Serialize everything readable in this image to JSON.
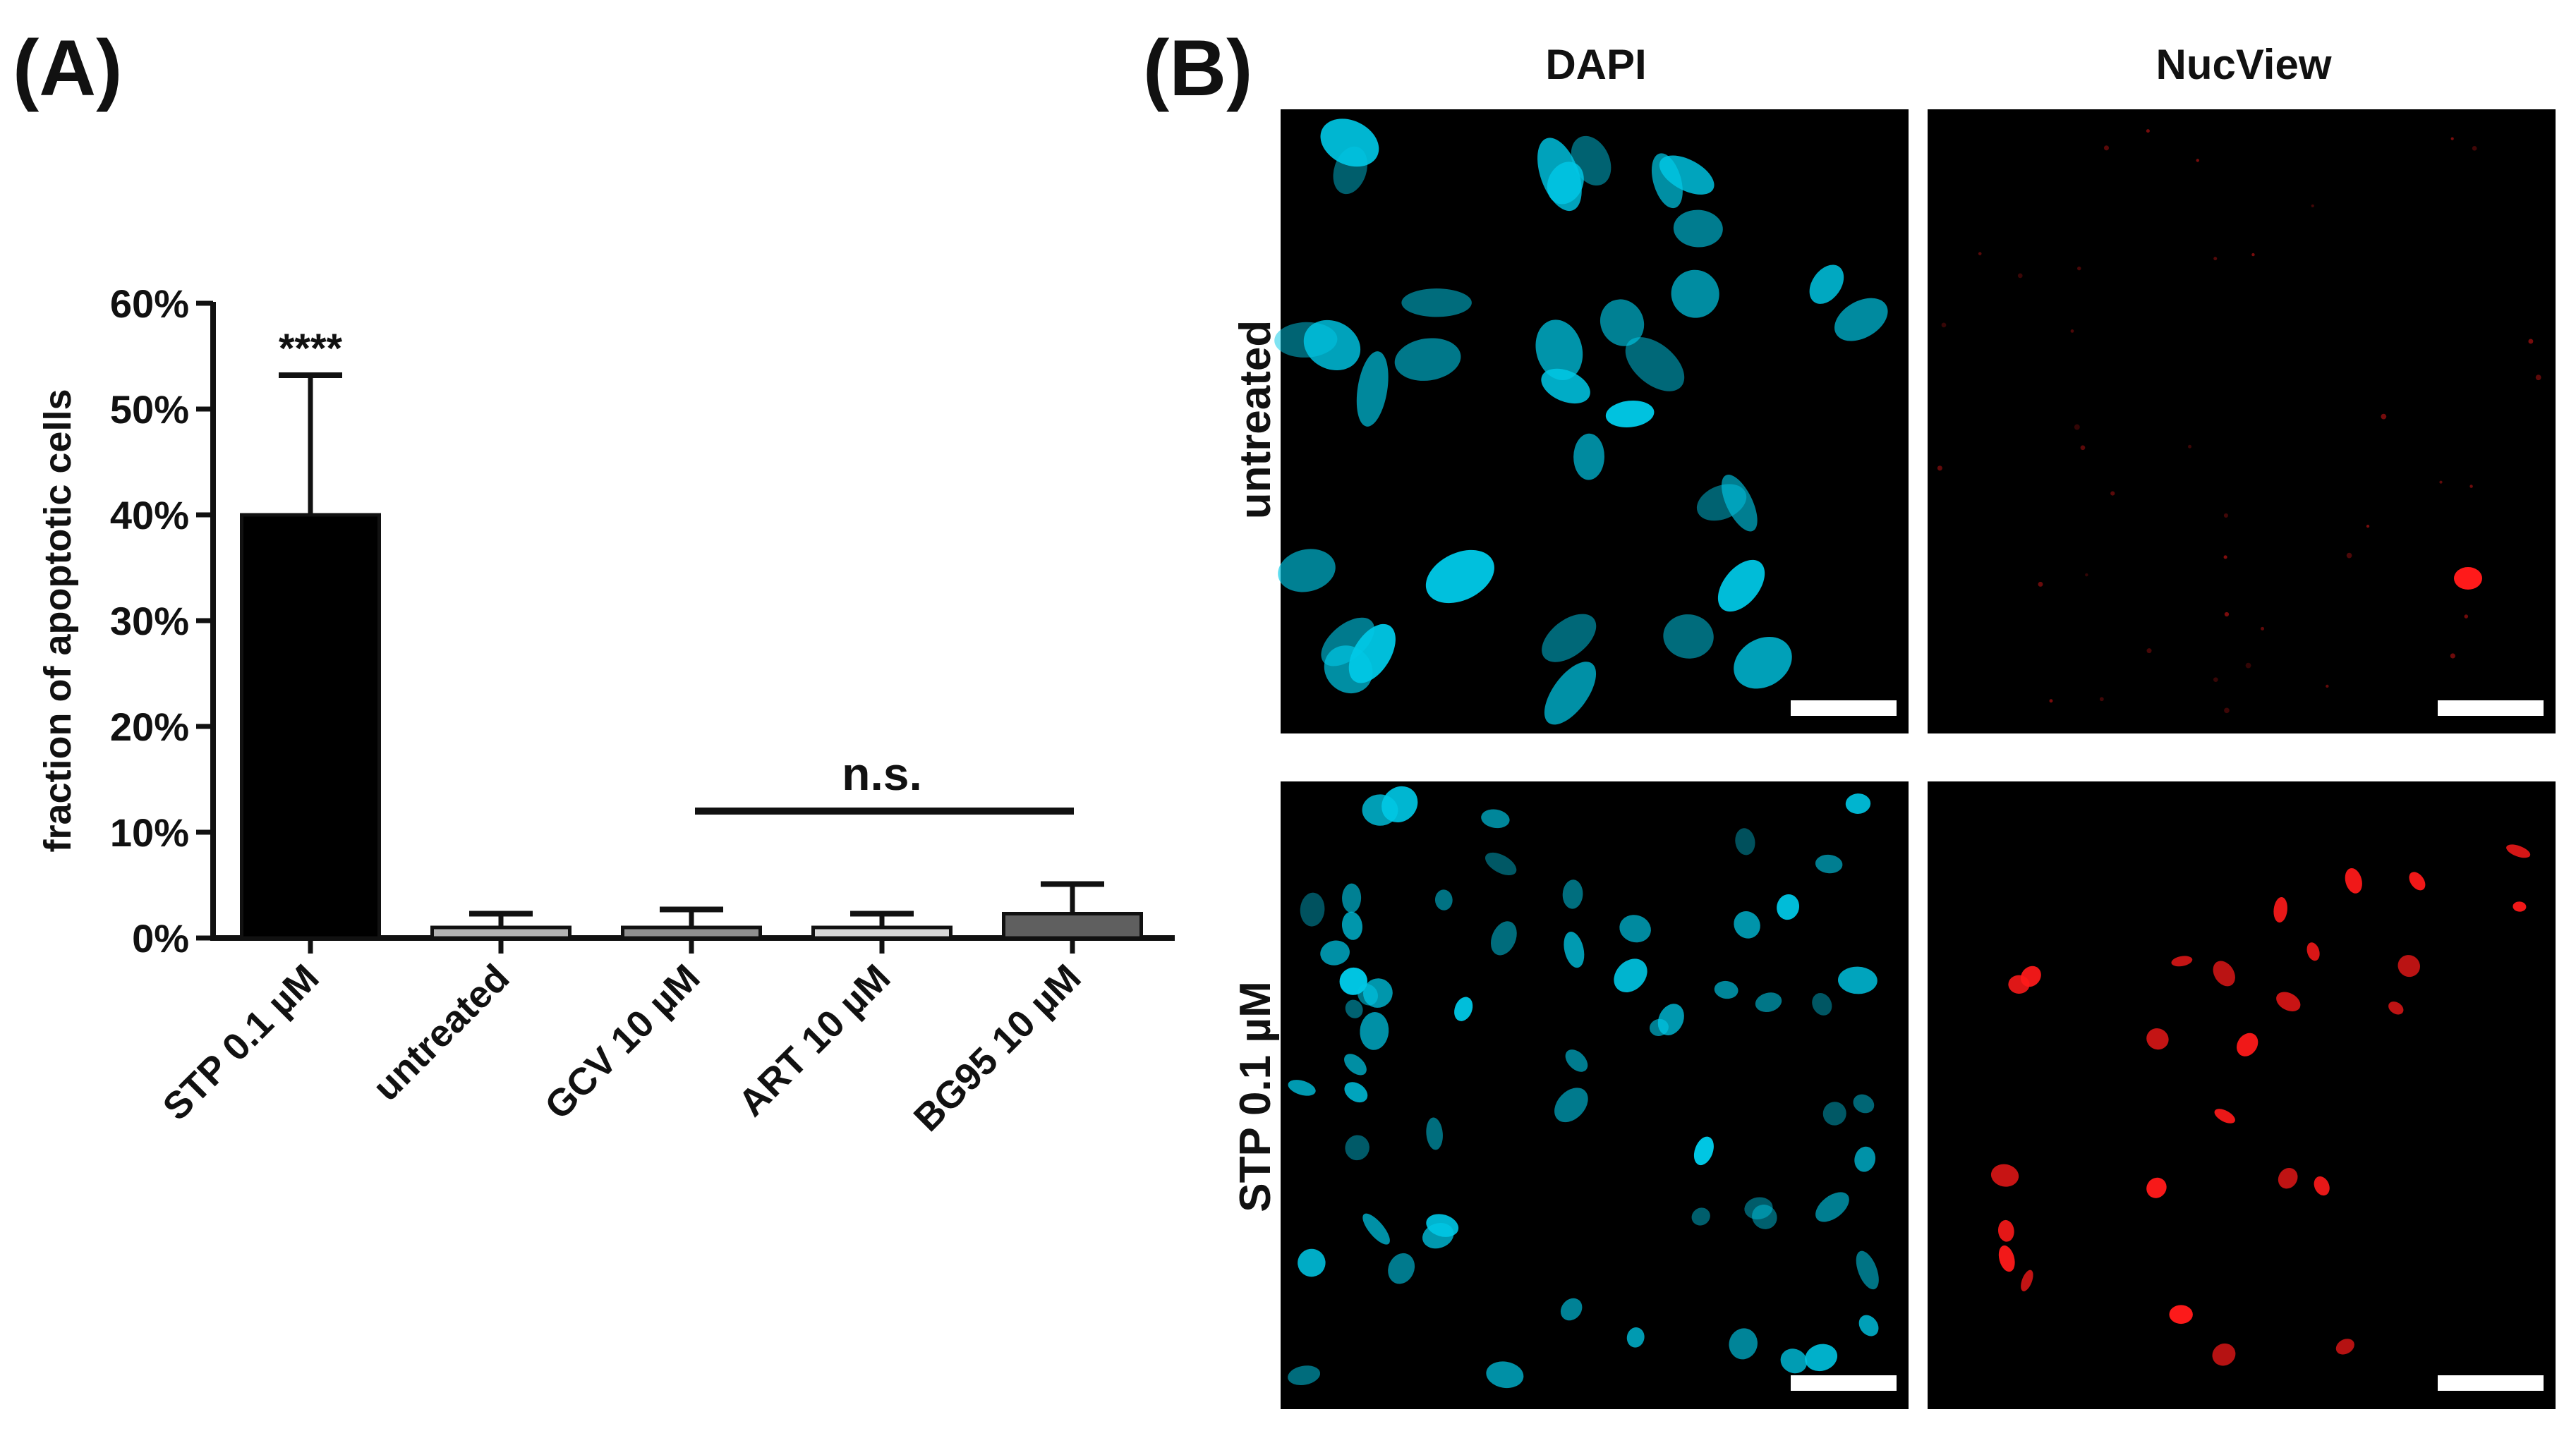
{
  "panels": {
    "a": "(A)",
    "b": "(B)"
  },
  "chart_data": {
    "type": "bar",
    "categories": [
      "STP 0.1 µM",
      "untreated",
      "GCV 10 µM",
      "ART 10 µM",
      "BG95 10 µM"
    ],
    "values": [
      40,
      1.0,
      1.0,
      1.0,
      2.3
    ],
    "errors": [
      13.2,
      1.3,
      1.7,
      1.3,
      2.8
    ],
    "colors": [
      "#000000",
      "#b3b3b3",
      "#8f8f8f",
      "#d7d7d7",
      "#5f5f5f"
    ],
    "ylabel": "fraction of apoptotic cells",
    "ylim": [
      0,
      60
    ],
    "yticks": [
      "0%",
      "10%",
      "20%",
      "30%",
      "40%",
      "50%",
      "60%"
    ],
    "annotations": {
      "significance": "****",
      "ns": "n.s."
    },
    "grid": false
  },
  "micrographs": {
    "columns": [
      "DAPI",
      "NucView"
    ],
    "rows": [
      "untreated",
      "STP 0.1 µM"
    ],
    "channel_colors": {
      "dapi": "#00c8e6",
      "nucview": "#ff1a1a"
    }
  }
}
